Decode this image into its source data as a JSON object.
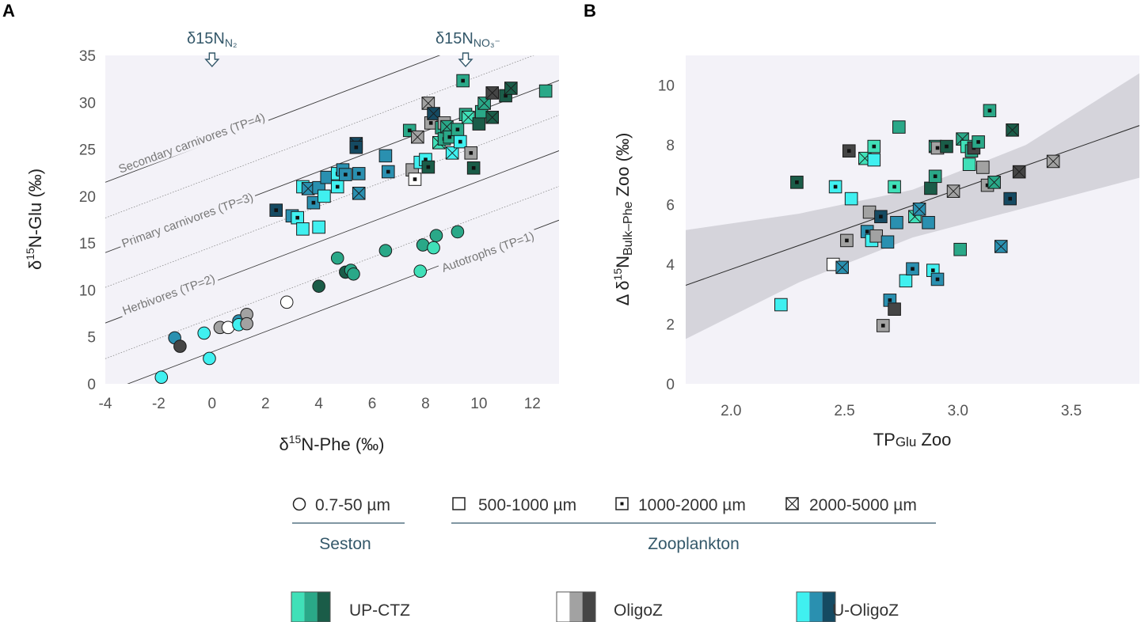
{
  "panels": {
    "a_letter": "A",
    "b_letter": "B"
  },
  "colors": {
    "plot_bg": "#f3f2f8",
    "up_ctz": [
      "#40e0b8",
      "#2aa888",
      "#1a5c48"
    ],
    "oligoz": [
      "#ffffff",
      "#a2a2a2",
      "#454545"
    ],
    "u_oligoz": [
      "#40f0f0",
      "#2a90b0",
      "#154a62"
    ]
  },
  "markers": {
    "circle": "0.7-50 µm",
    "square_open": "500-1000 µm",
    "square_dot": "1000-2000 µm",
    "square_x": "2000-5000 µm"
  },
  "legend": {
    "seston_title": "Seston",
    "zoo_title": "Zooplankton",
    "groups": [
      "UP-CTZ",
      "OligoZ",
      "U-OligoZ"
    ]
  },
  "chart_data": [
    {
      "type": "scatter",
      "panel": "A",
      "xlabel": "δ15N-Phe (‰)",
      "ylabel": "δ15N-Glu (‰)",
      "xlim": [
        -4,
        13
      ],
      "ylim": [
        0,
        35
      ],
      "xticks": [
        "-4",
        "-2",
        "0",
        "2",
        "4",
        "6",
        "8",
        "10",
        "12"
      ],
      "yticks": [
        "0",
        "5",
        "10",
        "15",
        "20",
        "25",
        "30",
        "35"
      ],
      "annotations": {
        "n2_label": "δ15N",
        "n2_sub": "N₂",
        "no3_label": "δ15N",
        "no3_sub": "NO₃⁻",
        "n2_x": 0,
        "no3_x": 9.5
      },
      "tp_lines": [
        {
          "tp": 1,
          "intercept": 3.4,
          "style": "solid",
          "label": "Autotrophs (TP=1)"
        },
        {
          "tp": 1.5,
          "intercept": 7.0,
          "style": "dotted",
          "label": ""
        },
        {
          "tp": 2,
          "intercept": 10.8,
          "style": "solid",
          "label": "Herbivores (TP=2)"
        },
        {
          "tp": 2.5,
          "intercept": 14.6,
          "style": "dotted",
          "label": ""
        },
        {
          "tp": 3,
          "intercept": 18.3,
          "style": "solid",
          "label": "Primary carnivores (TP=3)"
        },
        {
          "tp": 3.5,
          "intercept": 22.0,
          "style": "dotted",
          "label": ""
        },
        {
          "tp": 4,
          "intercept": 25.8,
          "style": "solid",
          "label": "Secondary carnivores (TP=4)"
        }
      ],
      "tp_slope": 1.08,
      "points": [
        {
          "x": -1.4,
          "y": 4.9,
          "m": "circle",
          "c": "u_oligoz",
          "s": 1
        },
        {
          "x": -1.2,
          "y": 4.0,
          "m": "circle",
          "c": "oligoz",
          "s": 2
        },
        {
          "x": -1.9,
          "y": 0.7,
          "m": "circle",
          "c": "u_oligoz",
          "s": 0
        },
        {
          "x": -0.3,
          "y": 5.4,
          "m": "circle",
          "c": "u_oligoz",
          "s": 0
        },
        {
          "x": -0.1,
          "y": 2.7,
          "m": "circle",
          "c": "u_oligoz",
          "s": 0
        },
        {
          "x": 0.3,
          "y": 6.0,
          "m": "circle",
          "c": "oligoz",
          "s": 1
        },
        {
          "x": 0.6,
          "y": 6.0,
          "m": "circle",
          "c": "oligoz",
          "s": 0
        },
        {
          "x": 1.0,
          "y": 6.7,
          "m": "circle",
          "c": "u_oligoz",
          "s": 1
        },
        {
          "x": 1.0,
          "y": 6.3,
          "m": "circle",
          "c": "u_oligoz",
          "s": 0
        },
        {
          "x": 1.3,
          "y": 7.4,
          "m": "circle",
          "c": "oligoz",
          "s": 1
        },
        {
          "x": 1.3,
          "y": 6.4,
          "m": "circle",
          "c": "oligoz",
          "s": 1
        },
        {
          "x": 2.8,
          "y": 8.7,
          "m": "circle",
          "c": "oligoz",
          "s": 0
        },
        {
          "x": 4.0,
          "y": 10.4,
          "m": "circle",
          "c": "up_ctz",
          "s": 2
        },
        {
          "x": 4.7,
          "y": 13.4,
          "m": "circle",
          "c": "up_ctz",
          "s": 1
        },
        {
          "x": 5.0,
          "y": 11.9,
          "m": "circle",
          "c": "up_ctz",
          "s": 2
        },
        {
          "x": 5.2,
          "y": 12.1,
          "m": "circle",
          "c": "up_ctz",
          "s": 1
        },
        {
          "x": 5.3,
          "y": 11.7,
          "m": "circle",
          "c": "up_ctz",
          "s": 1
        },
        {
          "x": 6.5,
          "y": 14.2,
          "m": "circle",
          "c": "up_ctz",
          "s": 1
        },
        {
          "x": 7.8,
          "y": 12.0,
          "m": "circle",
          "c": "up_ctz",
          "s": 0
        },
        {
          "x": 7.9,
          "y": 14.8,
          "m": "circle",
          "c": "up_ctz",
          "s": 1
        },
        {
          "x": 8.3,
          "y": 14.5,
          "m": "circle",
          "c": "up_ctz",
          "s": 0
        },
        {
          "x": 8.4,
          "y": 15.8,
          "m": "circle",
          "c": "up_ctz",
          "s": 1
        },
        {
          "x": 9.2,
          "y": 16.2,
          "m": "circle",
          "c": "up_ctz",
          "s": 1
        },
        {
          "x": 2.4,
          "y": 18.5,
          "m": "sq_dot",
          "c": "u_oligoz",
          "s": 2
        },
        {
          "x": 3.0,
          "y": 17.9,
          "m": "sq",
          "c": "u_oligoz",
          "s": 1
        },
        {
          "x": 3.2,
          "y": 17.7,
          "m": "sq_dot",
          "c": "u_oligoz",
          "s": 0
        },
        {
          "x": 3.4,
          "y": 16.5,
          "m": "sq",
          "c": "u_oligoz",
          "s": 0
        },
        {
          "x": 4.0,
          "y": 16.7,
          "m": "sq",
          "c": "u_oligoz",
          "s": 0
        },
        {
          "x": 3.4,
          "y": 21.0,
          "m": "sq",
          "c": "u_oligoz",
          "s": 0
        },
        {
          "x": 3.6,
          "y": 20.8,
          "m": "sq_x",
          "c": "u_oligoz",
          "s": 1
        },
        {
          "x": 3.8,
          "y": 19.3,
          "m": "sq_dot",
          "c": "u_oligoz",
          "s": 1
        },
        {
          "x": 4.0,
          "y": 20.9,
          "m": "sq",
          "c": "u_oligoz",
          "s": 1
        },
        {
          "x": 4.2,
          "y": 20.0,
          "m": "sq",
          "c": "u_oligoz",
          "s": 0
        },
        {
          "x": 4.3,
          "y": 22.0,
          "m": "sq",
          "c": "u_oligoz",
          "s": 1
        },
        {
          "x": 4.7,
          "y": 21.0,
          "m": "sq_dot",
          "c": "u_oligoz",
          "s": 0
        },
        {
          "x": 4.7,
          "y": 22.4,
          "m": "sq_dot",
          "c": "u_oligoz",
          "s": 0
        },
        {
          "x": 4.9,
          "y": 22.8,
          "m": "sq",
          "c": "u_oligoz",
          "s": 1
        },
        {
          "x": 5.0,
          "y": 22.3,
          "m": "sq_dot",
          "c": "u_oligoz",
          "s": 1
        },
        {
          "x": 5.4,
          "y": 25.6,
          "m": "sq_x",
          "c": "u_oligoz",
          "s": 2
        },
        {
          "x": 5.4,
          "y": 25.2,
          "m": "sq_dot",
          "c": "u_oligoz",
          "s": 2
        },
        {
          "x": 5.5,
          "y": 22.4,
          "m": "sq_dot",
          "c": "u_oligoz",
          "s": 1
        },
        {
          "x": 5.5,
          "y": 20.3,
          "m": "sq_x",
          "c": "u_oligoz",
          "s": 1
        },
        {
          "x": 6.5,
          "y": 24.3,
          "m": "sq",
          "c": "u_oligoz",
          "s": 1
        },
        {
          "x": 6.6,
          "y": 22.6,
          "m": "sq_dot",
          "c": "u_oligoz",
          "s": 1
        },
        {
          "x": 7.4,
          "y": 27.0,
          "m": "sq_dot",
          "c": "up_ctz",
          "s": 1
        },
        {
          "x": 7.5,
          "y": 22.8,
          "m": "sq",
          "c": "oligoz",
          "s": 1
        },
        {
          "x": 7.6,
          "y": 21.8,
          "m": "sq_dot",
          "c": "oligoz",
          "s": 0
        },
        {
          "x": 7.7,
          "y": 26.3,
          "m": "sq_x",
          "c": "oligoz",
          "s": 1
        },
        {
          "x": 7.8,
          "y": 23.6,
          "m": "sq",
          "c": "u_oligoz",
          "s": 0
        },
        {
          "x": 8.0,
          "y": 23.9,
          "m": "sq_dot",
          "c": "u_oligoz",
          "s": 0
        },
        {
          "x": 8.1,
          "y": 23.1,
          "m": "sq_dot",
          "c": "up_ctz",
          "s": 2
        },
        {
          "x": 8.1,
          "y": 29.9,
          "m": "sq_x",
          "c": "oligoz",
          "s": 1
        },
        {
          "x": 8.2,
          "y": 27.8,
          "m": "sq_dot",
          "c": "oligoz",
          "s": 1
        },
        {
          "x": 8.3,
          "y": 28.8,
          "m": "sq_x",
          "c": "u_oligoz",
          "s": 2
        },
        {
          "x": 8.5,
          "y": 25.7,
          "m": "sq_x",
          "c": "up_ctz",
          "s": 0
        },
        {
          "x": 8.6,
          "y": 27.3,
          "m": "sq",
          "c": "up_ctz",
          "s": 1
        },
        {
          "x": 8.7,
          "y": 27.8,
          "m": "sq",
          "c": "oligoz",
          "s": 1
        },
        {
          "x": 8.7,
          "y": 26.1,
          "m": "sq_dot",
          "c": "up_ctz",
          "s": 1
        },
        {
          "x": 8.8,
          "y": 27.4,
          "m": "sq_x",
          "c": "up_ctz",
          "s": 1
        },
        {
          "x": 8.9,
          "y": 26.3,
          "m": "sq_dot",
          "c": "up_ctz",
          "s": 1
        },
        {
          "x": 9.0,
          "y": 24.6,
          "m": "sq_x",
          "c": "u_oligoz",
          "s": 0
        },
        {
          "x": 9.2,
          "y": 27.1,
          "m": "sq_dot",
          "c": "up_ctz",
          "s": 1
        },
        {
          "x": 9.3,
          "y": 25.8,
          "m": "sq_dot",
          "c": "u_oligoz",
          "s": 0
        },
        {
          "x": 9.4,
          "y": 32.3,
          "m": "sq_dot",
          "c": "up_ctz",
          "s": 1
        },
        {
          "x": 9.5,
          "y": 28.7,
          "m": "sq",
          "c": "up_ctz",
          "s": 1
        },
        {
          "x": 9.6,
          "y": 28.4,
          "m": "sq_x",
          "c": "up_ctz",
          "s": 0
        },
        {
          "x": 9.7,
          "y": 24.6,
          "m": "sq_dot",
          "c": "oligoz",
          "s": 1
        },
        {
          "x": 9.8,
          "y": 23.0,
          "m": "sq_dot",
          "c": "up_ctz",
          "s": 2
        },
        {
          "x": 10.0,
          "y": 27.7,
          "m": "sq",
          "c": "up_ctz",
          "s": 2
        },
        {
          "x": 10.1,
          "y": 29.0,
          "m": "sq",
          "c": "up_ctz",
          "s": 1
        },
        {
          "x": 10.2,
          "y": 29.9,
          "m": "sq_x",
          "c": "up_ctz",
          "s": 1
        },
        {
          "x": 10.5,
          "y": 31.0,
          "m": "sq_x",
          "c": "oligoz",
          "s": 2
        },
        {
          "x": 10.5,
          "y": 28.4,
          "m": "sq_x",
          "c": "up_ctz",
          "s": 2
        },
        {
          "x": 11.0,
          "y": 30.7,
          "m": "sq_dot",
          "c": "up_ctz",
          "s": 2
        },
        {
          "x": 11.2,
          "y": 31.5,
          "m": "sq_x",
          "c": "up_ctz",
          "s": 2
        },
        {
          "x": 12.5,
          "y": 31.2,
          "m": "sq",
          "c": "up_ctz",
          "s": 1
        }
      ]
    },
    {
      "type": "scatter",
      "panel": "B",
      "xlabel_main": "TP",
      "xlabel_sub": "Glu",
      "xlabel_tail": " Zoo",
      "ylabel_pre": "Δ δ",
      "ylabel_sup": "15",
      "ylabel_n": "N",
      "ylabel_sub": "Bulk–Phe",
      "ylabel_tail": " Zoo (‰)",
      "xlim": [
        1.8,
        3.8
      ],
      "ylim": [
        0,
        11
      ],
      "xticks": [
        "2.0",
        "2.5",
        "3.0",
        "3.5"
      ],
      "yticks": [
        "0",
        "2",
        "4",
        "6",
        "8",
        "10"
      ],
      "regression": {
        "x": [
          1.8,
          3.8
        ],
        "y": [
          3.3,
          8.65
        ]
      },
      "ci_band": {
        "x": [
          1.8,
          2.3,
          2.8,
          3.3,
          3.8
        ],
        "lower": [
          1.5,
          3.4,
          4.9,
          5.9,
          6.9
        ],
        "upper": [
          5.15,
          5.7,
          6.5,
          8.0,
          10.4
        ]
      },
      "points": [
        {
          "x": 2.22,
          "y": 2.65,
          "m": "sq",
          "c": "u_oligoz",
          "s": 0
        },
        {
          "x": 2.29,
          "y": 6.75,
          "m": "sq_dot",
          "c": "up_ctz",
          "s": 2
        },
        {
          "x": 2.45,
          "y": 4.0,
          "m": "sq",
          "c": "oligoz",
          "s": 0
        },
        {
          "x": 2.46,
          "y": 6.6,
          "m": "sq_dot",
          "c": "u_oligoz",
          "s": 0
        },
        {
          "x": 2.49,
          "y": 3.9,
          "m": "sq_x",
          "c": "u_oligoz",
          "s": 1
        },
        {
          "x": 2.51,
          "y": 4.8,
          "m": "sq_dot",
          "c": "oligoz",
          "s": 1
        },
        {
          "x": 2.52,
          "y": 7.8,
          "m": "sq_dot",
          "c": "oligoz",
          "s": 2
        },
        {
          "x": 2.53,
          "y": 6.2,
          "m": "sq",
          "c": "u_oligoz",
          "s": 0
        },
        {
          "x": 2.59,
          "y": 7.55,
          "m": "sq_x",
          "c": "up_ctz",
          "s": 0
        },
        {
          "x": 2.6,
          "y": 5.1,
          "m": "sq_dot",
          "c": "u_oligoz",
          "s": 1
        },
        {
          "x": 2.61,
          "y": 5.75,
          "m": "sq",
          "c": "oligoz",
          "s": 1
        },
        {
          "x": 2.62,
          "y": 4.8,
          "m": "sq",
          "c": "u_oligoz",
          "s": 0
        },
        {
          "x": 2.63,
          "y": 7.95,
          "m": "sq_dot",
          "c": "up_ctz",
          "s": 0
        },
        {
          "x": 2.63,
          "y": 7.5,
          "m": "sq",
          "c": "u_oligoz",
          "s": 0
        },
        {
          "x": 2.64,
          "y": 4.95,
          "m": "sq",
          "c": "oligoz",
          "s": 1
        },
        {
          "x": 2.66,
          "y": 5.6,
          "m": "sq_dot",
          "c": "u_oligoz",
          "s": 2
        },
        {
          "x": 2.67,
          "y": 1.95,
          "m": "sq_dot",
          "c": "oligoz",
          "s": 1
        },
        {
          "x": 2.69,
          "y": 4.75,
          "m": "sq",
          "c": "u_oligoz",
          "s": 1
        },
        {
          "x": 2.7,
          "y": 2.8,
          "m": "sq_dot",
          "c": "u_oligoz",
          "s": 1
        },
        {
          "x": 2.72,
          "y": 2.5,
          "m": "sq",
          "c": "oligoz",
          "s": 2
        },
        {
          "x": 2.72,
          "y": 6.6,
          "m": "sq_dot",
          "c": "up_ctz",
          "s": 0
        },
        {
          "x": 2.73,
          "y": 5.4,
          "m": "sq",
          "c": "u_oligoz",
          "s": 1
        },
        {
          "x": 2.74,
          "y": 8.6,
          "m": "sq",
          "c": "up_ctz",
          "s": 1
        },
        {
          "x": 2.77,
          "y": 3.45,
          "m": "sq",
          "c": "u_oligoz",
          "s": 0
        },
        {
          "x": 2.8,
          "y": 3.85,
          "m": "sq_dot",
          "c": "u_oligoz",
          "s": 1
        },
        {
          "x": 2.81,
          "y": 5.6,
          "m": "sq_x",
          "c": "up_ctz",
          "s": 0
        },
        {
          "x": 2.83,
          "y": 5.85,
          "m": "sq_x",
          "c": "u_oligoz",
          "s": 1
        },
        {
          "x": 2.87,
          "y": 5.4,
          "m": "sq",
          "c": "u_oligoz",
          "s": 1
        },
        {
          "x": 2.88,
          "y": 6.55,
          "m": "sq",
          "c": "up_ctz",
          "s": 2
        },
        {
          "x": 2.89,
          "y": 3.8,
          "m": "sq_dot",
          "c": "u_oligoz",
          "s": 0
        },
        {
          "x": 2.9,
          "y": 6.95,
          "m": "sq_dot",
          "c": "up_ctz",
          "s": 1
        },
        {
          "x": 2.9,
          "y": 7.95,
          "m": "sq_x",
          "c": "up_ctz",
          "s": 1
        },
        {
          "x": 2.91,
          "y": 3.5,
          "m": "sq_dot",
          "c": "u_oligoz",
          "s": 1
        },
        {
          "x": 2.91,
          "y": 7.9,
          "m": "sq_dot",
          "c": "oligoz",
          "s": 1
        },
        {
          "x": 2.95,
          "y": 7.95,
          "m": "sq_dot",
          "c": "up_ctz",
          "s": 2
        },
        {
          "x": 2.98,
          "y": 6.45,
          "m": "sq_x",
          "c": "oligoz",
          "s": 1
        },
        {
          "x": 3.01,
          "y": 4.5,
          "m": "sq",
          "c": "up_ctz",
          "s": 1
        },
        {
          "x": 3.02,
          "y": 8.2,
          "m": "sq_x",
          "c": "up_ctz",
          "s": 1
        },
        {
          "x": 3.04,
          "y": 7.95,
          "m": "sq",
          "c": "up_ctz",
          "s": 0
        },
        {
          "x": 3.05,
          "y": 7.35,
          "m": "sq",
          "c": "up_ctz",
          "s": 0
        },
        {
          "x": 3.06,
          "y": 7.8,
          "m": "sq_dot",
          "c": "up_ctz",
          "s": 1
        },
        {
          "x": 3.07,
          "y": 7.9,
          "m": "sq_dot",
          "c": "oligoz",
          "s": 2
        },
        {
          "x": 3.09,
          "y": 8.1,
          "m": "sq_dot",
          "c": "up_ctz",
          "s": 1
        },
        {
          "x": 3.11,
          "y": 7.25,
          "m": "sq",
          "c": "oligoz",
          "s": 1
        },
        {
          "x": 3.13,
          "y": 6.65,
          "m": "sq_dot",
          "c": "oligoz",
          "s": 1
        },
        {
          "x": 3.14,
          "y": 9.15,
          "m": "sq_dot",
          "c": "up_ctz",
          "s": 1
        },
        {
          "x": 3.16,
          "y": 6.75,
          "m": "sq_x",
          "c": "up_ctz",
          "s": 1
        },
        {
          "x": 3.19,
          "y": 4.6,
          "m": "sq_x",
          "c": "u_oligoz",
          "s": 1
        },
        {
          "x": 3.23,
          "y": 6.2,
          "m": "sq_dot",
          "c": "u_oligoz",
          "s": 2
        },
        {
          "x": 3.24,
          "y": 8.5,
          "m": "sq_x",
          "c": "up_ctz",
          "s": 2
        },
        {
          "x": 3.27,
          "y": 7.1,
          "m": "sq_x",
          "c": "oligoz",
          "s": 2
        },
        {
          "x": 3.42,
          "y": 7.45,
          "m": "sq_x",
          "c": "oligoz",
          "s": 1
        }
      ]
    }
  ]
}
